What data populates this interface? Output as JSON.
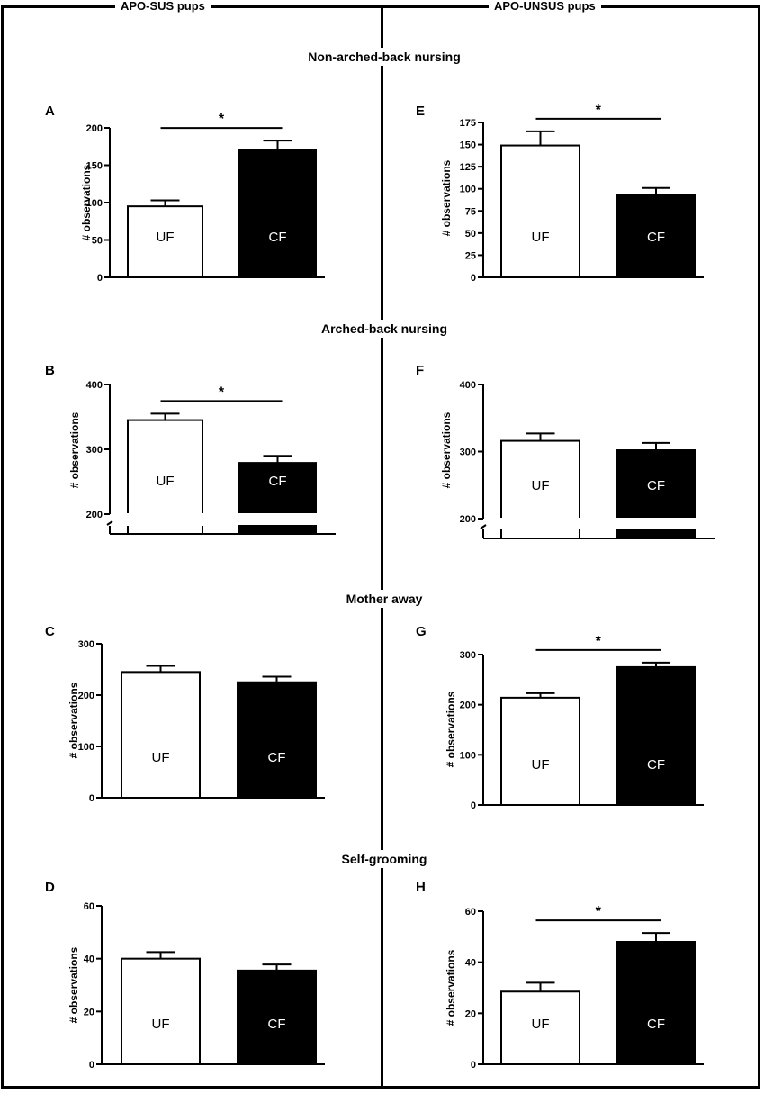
{
  "headers": {
    "left": "APO-SUS pups",
    "right": "APO-UNSUS pups"
  },
  "sections": [
    "Non-arched-back nursing",
    "Arched-back nursing",
    "Mother away",
    "Self-grooming"
  ],
  "chart_data": [
    {
      "panel": "A",
      "type": "bar",
      "ylabel": "# observations",
      "categories": [
        "UF",
        "CF"
      ],
      "values": [
        95,
        171
      ],
      "errors": [
        8,
        12
      ],
      "ylim": [
        0,
        200
      ],
      "yticks": [
        0,
        50,
        100,
        150,
        200
      ],
      "bar_colors": [
        "#ffffff",
        "#000000"
      ],
      "significance": "*"
    },
    {
      "panel": "B",
      "type": "bar",
      "ylabel": "# observations",
      "categories": [
        "UF",
        "CF"
      ],
      "values": [
        345,
        279
      ],
      "errors": [
        10,
        11
      ],
      "ylim": [
        200,
        400
      ],
      "yticks": [
        200,
        300,
        400
      ],
      "axis_break": true,
      "bar_colors": [
        "#ffffff",
        "#000000"
      ],
      "significance": "*"
    },
    {
      "panel": "C",
      "type": "bar",
      "ylabel": "# observations",
      "categories": [
        "UF",
        "CF"
      ],
      "values": [
        245,
        225
      ],
      "errors": [
        12,
        11
      ],
      "ylim": [
        0,
        300
      ],
      "yticks": [
        0,
        100,
        200,
        300
      ],
      "bar_colors": [
        "#ffffff",
        "#000000"
      ],
      "significance": ""
    },
    {
      "panel": "D",
      "type": "bar",
      "ylabel": "# observations",
      "categories": [
        "UF",
        "CF"
      ],
      "values": [
        40,
        35.5
      ],
      "errors": [
        2.5,
        2.3
      ],
      "ylim": [
        0,
        60
      ],
      "yticks": [
        0,
        20,
        40,
        60
      ],
      "bar_colors": [
        "#ffffff",
        "#000000"
      ],
      "significance": ""
    },
    {
      "panel": "E",
      "type": "bar",
      "ylabel": "# observations",
      "categories": [
        "UF",
        "CF"
      ],
      "values": [
        149,
        93
      ],
      "errors": [
        16,
        8
      ],
      "ylim": [
        0,
        175
      ],
      "yticks": [
        0,
        25,
        50,
        75,
        100,
        125,
        150,
        175
      ],
      "bar_colors": [
        "#ffffff",
        "#000000"
      ],
      "significance": "*"
    },
    {
      "panel": "F",
      "type": "bar",
      "ylabel": "# observations",
      "categories": [
        "UF",
        "CF"
      ],
      "values": [
        316,
        302
      ],
      "errors": [
        11,
        11
      ],
      "ylim": [
        200,
        400
      ],
      "yticks": [
        200,
        300,
        400
      ],
      "axis_break": true,
      "bar_colors": [
        "#ffffff",
        "#000000"
      ],
      "significance": ""
    },
    {
      "panel": "G",
      "type": "bar",
      "ylabel": "# observations",
      "categories": [
        "UF",
        "CF"
      ],
      "values": [
        214,
        275
      ],
      "errors": [
        9,
        9
      ],
      "ylim": [
        0,
        300
      ],
      "yticks": [
        0,
        100,
        200,
        300
      ],
      "bar_colors": [
        "#ffffff",
        "#000000"
      ],
      "significance": "*"
    },
    {
      "panel": "H",
      "type": "bar",
      "ylabel": "# observations",
      "categories": [
        "UF",
        "CF"
      ],
      "values": [
        28.5,
        48
      ],
      "errors": [
        3.5,
        3.5
      ],
      "ylim": [
        0,
        60
      ],
      "yticks": [
        0,
        20,
        40,
        60
      ],
      "bar_colors": [
        "#ffffff",
        "#000000"
      ],
      "significance": "*"
    }
  ]
}
